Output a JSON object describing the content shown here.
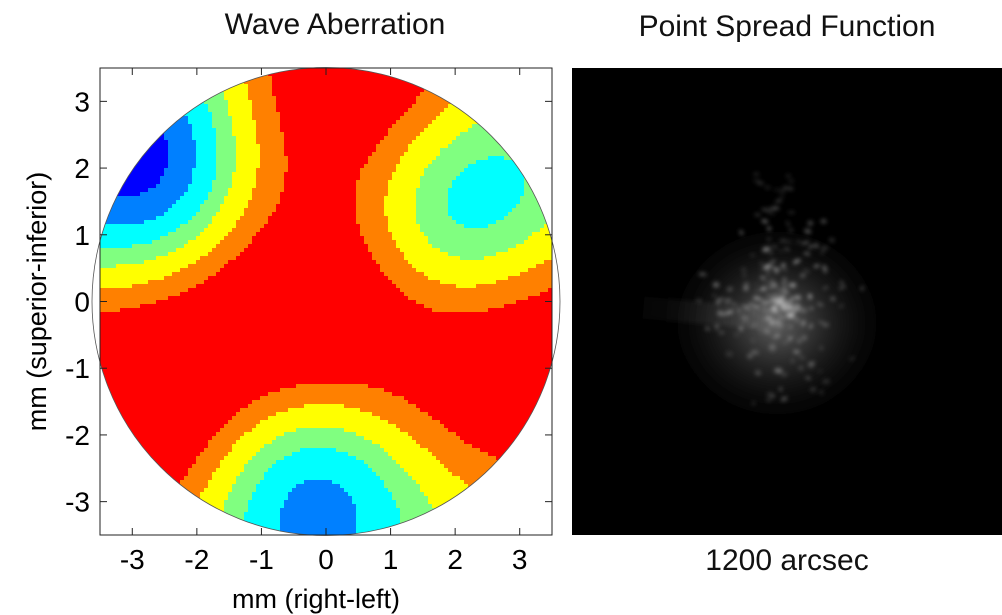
{
  "chart_data": [
    {
      "type": "contour",
      "title": "Wave Aberration",
      "xlabel": "mm (right-left)",
      "ylabel": "mm (superior-inferior)",
      "xlim": [
        -3.5,
        3.5
      ],
      "ylim": [
        -3.5,
        3.5
      ],
      "xticks": [
        "-3",
        "-2",
        "-1",
        "0",
        "1",
        "2",
        "3"
      ],
      "yticks": [
        "3",
        "2",
        "1",
        "0",
        "-1",
        "-2",
        "-3"
      ],
      "pupil_radius_mm": 3.5,
      "grid": false,
      "colormap": [
        "#00008f",
        "#0000ff",
        "#0080ff",
        "#00ffff",
        "#80ff80",
        "#ffff00",
        "#ff8000",
        "#ff0000"
      ],
      "features": [
        {
          "kind": "trough",
          "x": -2.8,
          "y": 2.0
        },
        {
          "kind": "trough",
          "x": 2.1,
          "y": 1.3
        },
        {
          "kind": "trough",
          "x": -0.3,
          "y": -2.6
        },
        {
          "kind": "peak",
          "x": -0.3,
          "y": -0.5
        },
        {
          "kind": "peak",
          "x": 0.5,
          "y": 3.5
        },
        {
          "kind": "peak",
          "x": -3.4,
          "y": -1.8
        },
        {
          "kind": "peak",
          "x": 3.4,
          "y": -0.7
        }
      ]
    },
    {
      "type": "image",
      "title": "Point Spread Function",
      "caption": "1200 arcsec",
      "background": "#000000"
    }
  ]
}
